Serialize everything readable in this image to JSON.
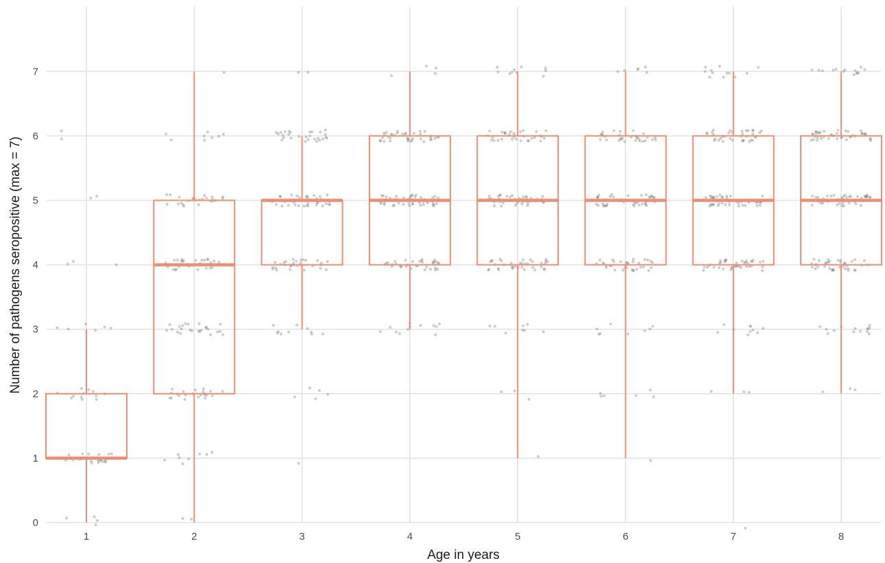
{
  "chart_data": {
    "type": "box",
    "xlabel": "Age in years",
    "ylabel": "Number of pathogens seropositive (max = 7)",
    "categories": [
      "1",
      "2",
      "3",
      "4",
      "5",
      "6",
      "7",
      "8"
    ],
    "y_ticks": [
      "0",
      "1",
      "2",
      "3",
      "4",
      "5",
      "6",
      "7"
    ],
    "ylim": [
      0,
      7.5
    ],
    "grid": true,
    "box_color": "#f08c6f",
    "point_color": "#7f7f7f",
    "boxes": [
      {
        "age": "1",
        "min": 0,
        "q1": 1,
        "median": 1,
        "q3": 2,
        "max": 3
      },
      {
        "age": "2",
        "min": 0,
        "q1": 2,
        "median": 4,
        "q3": 5,
        "max": 7
      },
      {
        "age": "3",
        "min": 3,
        "q1": 4,
        "median": 5,
        "q3": 5,
        "max": 6
      },
      {
        "age": "4",
        "min": 3,
        "q1": 4,
        "median": 5,
        "q3": 6,
        "max": 7
      },
      {
        "age": "5",
        "min": 1,
        "q1": 4,
        "median": 5,
        "q3": 6,
        "max": 7
      },
      {
        "age": "6",
        "min": 1,
        "q1": 4,
        "median": 5,
        "q3": 6,
        "max": 7
      },
      {
        "age": "7",
        "min": 2,
        "q1": 4,
        "median": 5,
        "q3": 6,
        "max": 7
      },
      {
        "age": "8",
        "min": 2,
        "q1": 4,
        "median": 5,
        "q3": 6,
        "max": 7
      }
    ],
    "point_counts": [
      {
        "age": "1",
        "counts": {
          "0": 4,
          "1": 24,
          "2": 12,
          "3": 6,
          "4": 3,
          "5": 2,
          "6": 2
        }
      },
      {
        "age": "2",
        "counts": {
          "0": 2,
          "1": 8,
          "2": 22,
          "3": 24,
          "4": 28,
          "5": 24,
          "6": 8,
          "7": 1
        }
      },
      {
        "age": "3",
        "counts": {
          "1": 1,
          "2": 5,
          "3": 10,
          "4": 30,
          "5": 40,
          "6": 28,
          "7": 2
        }
      },
      {
        "age": "4",
        "counts": {
          "3": 12,
          "4": 34,
          "5": 50,
          "6": 38,
          "7": 4
        }
      },
      {
        "age": "5",
        "counts": {
          "1": 1,
          "2": 3,
          "3": 8,
          "4": 36,
          "5": 48,
          "6": 32,
          "7": 10
        }
      },
      {
        "age": "6",
        "counts": {
          "1": 1,
          "2": 6,
          "3": 8,
          "4": 34,
          "5": 46,
          "6": 30,
          "7": 6
        }
      },
      {
        "age": "7",
        "counts": {
          "0": 1,
          "2": 3,
          "3": 10,
          "4": 40,
          "5": 44,
          "6": 36,
          "7": 12
        }
      },
      {
        "age": "8",
        "counts": {
          "2": 3,
          "3": 14,
          "4": 38,
          "5": 48,
          "6": 42,
          "7": 14
        }
      }
    ]
  }
}
